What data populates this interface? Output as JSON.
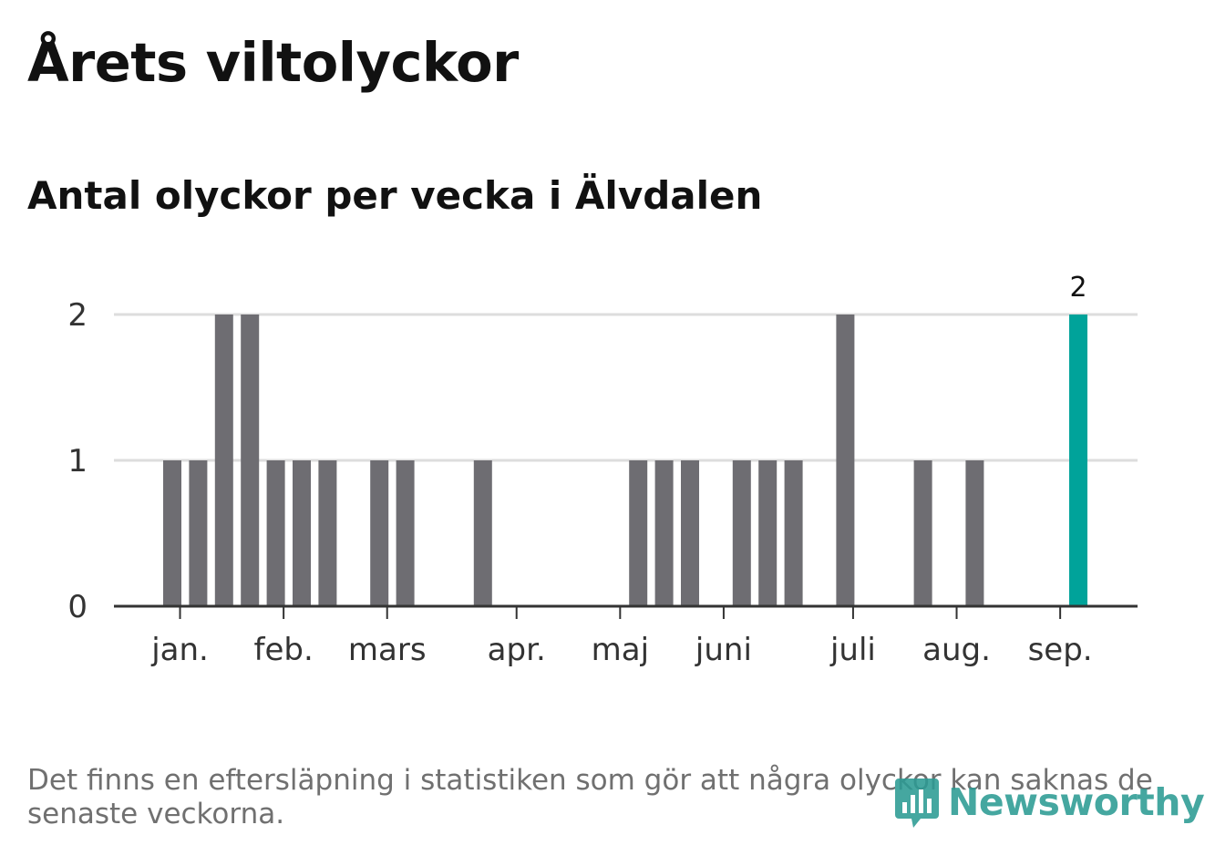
{
  "title": "Årets viltolyckor",
  "subtitle": "Antal olyckor per vecka i Älvdalen",
  "footnote": "Det finns en eftersläpning i statistiken som gör att några olyckor kan saknas de senaste veckorna.",
  "brand": {
    "name": "Newsworthy",
    "icon": "newsworthy-logo-icon"
  },
  "colors": {
    "bar": "#6e6d72",
    "highlight": "#00a39a",
    "grid": "#dddddd",
    "axis": "#333333",
    "brand": "#2c9b94"
  },
  "chart_data": {
    "type": "bar",
    "week_values": [
      {
        "week": 1,
        "value": 1
      },
      {
        "week": 2,
        "value": 1
      },
      {
        "week": 3,
        "value": 2
      },
      {
        "week": 4,
        "value": 2
      },
      {
        "week": 5,
        "value": 1
      },
      {
        "week": 6,
        "value": 1
      },
      {
        "week": 7,
        "value": 1
      },
      {
        "week": 8,
        "value": 0
      },
      {
        "week": 9,
        "value": 1
      },
      {
        "week": 10,
        "value": 1
      },
      {
        "week": 11,
        "value": 0
      },
      {
        "week": 12,
        "value": 0
      },
      {
        "week": 13,
        "value": 1
      },
      {
        "week": 14,
        "value": 0
      },
      {
        "week": 15,
        "value": 0
      },
      {
        "week": 16,
        "value": 0
      },
      {
        "week": 17,
        "value": 0
      },
      {
        "week": 18,
        "value": 0
      },
      {
        "week": 19,
        "value": 1
      },
      {
        "week": 20,
        "value": 1
      },
      {
        "week": 21,
        "value": 1
      },
      {
        "week": 22,
        "value": 0
      },
      {
        "week": 23,
        "value": 1
      },
      {
        "week": 24,
        "value": 1
      },
      {
        "week": 25,
        "value": 1
      },
      {
        "week": 26,
        "value": 0
      },
      {
        "week": 27,
        "value": 2
      },
      {
        "week": 28,
        "value": 0
      },
      {
        "week": 29,
        "value": 0
      },
      {
        "week": 30,
        "value": 1
      },
      {
        "week": 31,
        "value": 0
      },
      {
        "week": 32,
        "value": 1
      },
      {
        "week": 33,
        "value": 0
      },
      {
        "week": 34,
        "value": 0
      },
      {
        "week": 35,
        "value": 0
      },
      {
        "week": 36,
        "value": 2
      }
    ],
    "highlight_week": 36,
    "highlight_label": "2",
    "y_ticks": [
      "0",
      "1",
      "2"
    ],
    "ylim": [
      0,
      2
    ],
    "month_labels": [
      {
        "label": "jan.",
        "week": 1.3
      },
      {
        "label": "feb.",
        "week": 5.3
      },
      {
        "label": "mars",
        "week": 9.3
      },
      {
        "label": "apr.",
        "week": 14.3
      },
      {
        "label": "maj",
        "week": 18.3
      },
      {
        "label": "juni",
        "week": 22.3
      },
      {
        "label": "juli",
        "week": 27.3
      },
      {
        "label": "aug.",
        "week": 31.3
      },
      {
        "label": "sep.",
        "week": 35.3
      }
    ],
    "grid": true
  }
}
